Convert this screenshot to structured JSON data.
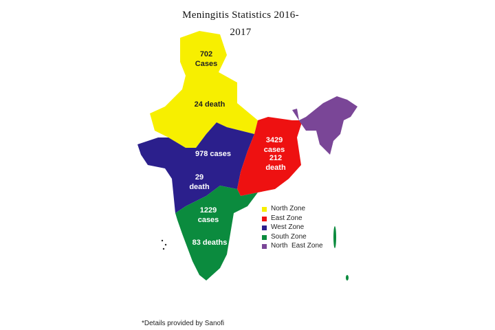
{
  "title": "Meningitis Statistics 2016-2017",
  "zones": [
    {
      "name": "North Zone",
      "color": "#f7ef00",
      "labels": [
        "702 Cases",
        "24 death"
      ]
    },
    {
      "name": "East Zone",
      "color": "#ee1111",
      "labels": [
        "3429 cases",
        "212 death"
      ]
    },
    {
      "name": "West Zone",
      "color": "#2b1f8c",
      "labels": [
        "978 cases",
        "29 death"
      ]
    },
    {
      "name": "South Zone",
      "color": "#0b8b3e",
      "labels": [
        "1229 cases",
        "83 deaths"
      ]
    },
    {
      "name": "North  East Zone",
      "color": "#7a4697",
      "labels": []
    }
  ],
  "footnote": "*Details provided by Sanofi"
}
